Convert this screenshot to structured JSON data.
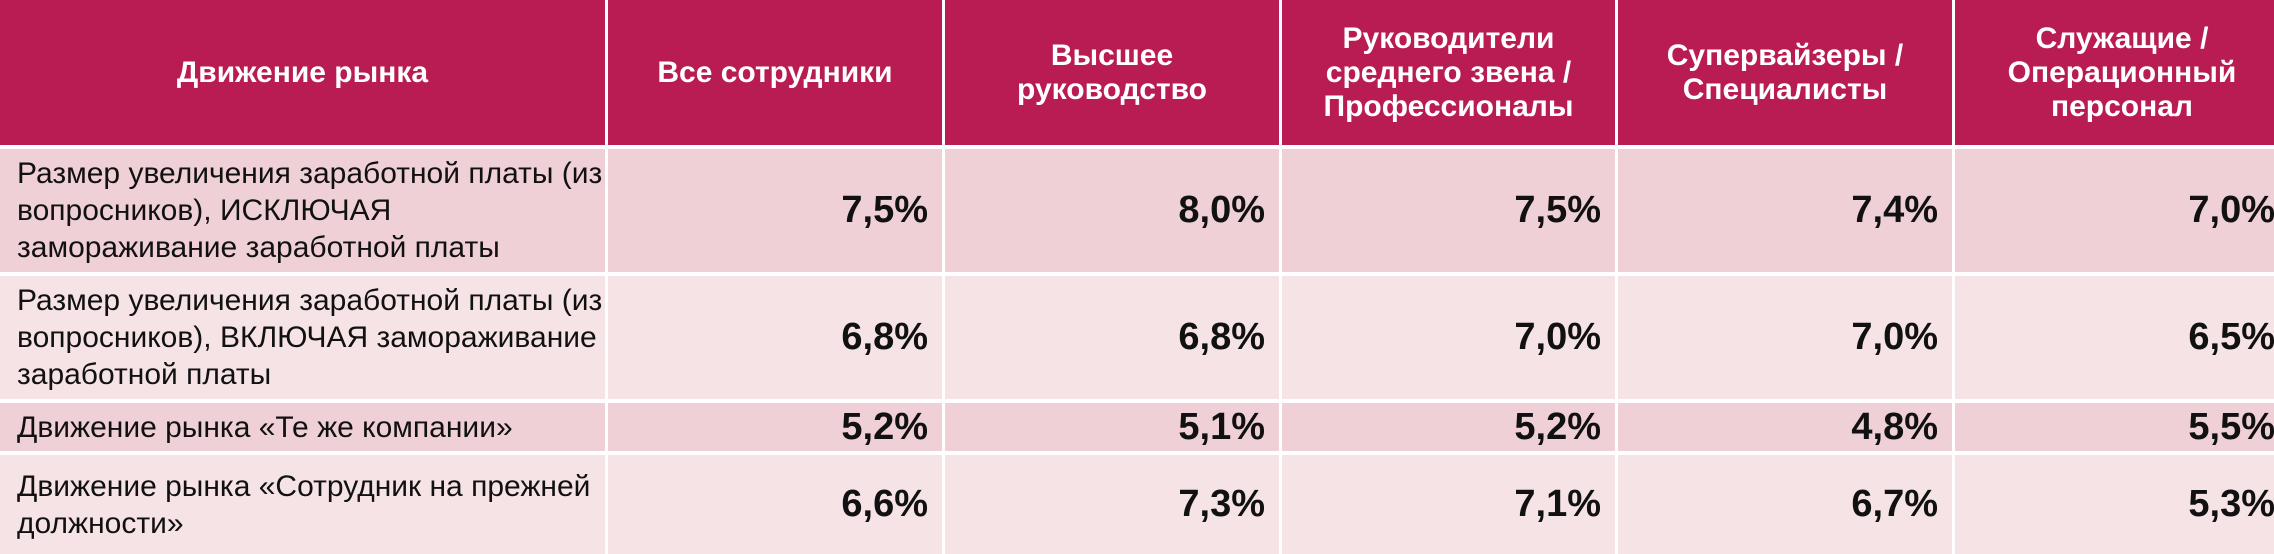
{
  "colors": {
    "header_bg": "#b91c52",
    "row_alt_1": "#efd0d6",
    "row_alt_2": "#f6e3e5"
  },
  "headers": [
    "Движение рынка",
    "Все сотрудники",
    "Высшее руководство",
    "Руководители среднего звена / Профессионалы",
    "Супервайзеры / Специалисты",
    "Служащие / Операционный персонал"
  ],
  "rows": [
    {
      "label": "Размер увеличения заработной платы (из вопросников), ИСКЛЮЧАЯ замораживание заработной платы",
      "values": [
        "7,5%",
        "8,0%",
        "7,5%",
        "7,4%",
        "7,0%"
      ]
    },
    {
      "label": "Размер увеличения заработной платы (из вопросников), ВКЛЮЧАЯ замораживание заработной платы",
      "values": [
        "6,8%",
        "6,8%",
        "7,0%",
        "7,0%",
        "6,5%"
      ]
    },
    {
      "label": "Движение рынка «Те же компании»",
      "values": [
        "5,2%",
        "5,1%",
        "5,2%",
        "4,8%",
        "5,5%"
      ]
    },
    {
      "label": "Движение рынка «Сотрудник на прежней должности»",
      "values": [
        "6,6%",
        "7,3%",
        "7,1%",
        "6,7%",
        "5,3%"
      ]
    }
  ]
}
